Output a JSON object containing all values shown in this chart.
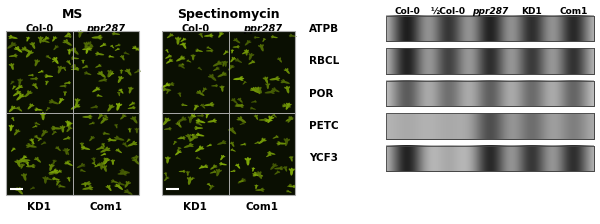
{
  "left_panel": {
    "ms_title": "MS",
    "spec_title": "Spectinomycin",
    "col0_label": "Col-0",
    "ppr287_label": "ppr287",
    "kd1_label": "KD1",
    "com1_label": "Com1",
    "bg_color": "#0a0f02",
    "plant_color_bright": "#c8d400",
    "plant_color_dark": "#6a8800"
  },
  "right_panel": {
    "bands": [
      "ATPB",
      "RBCL",
      "POR",
      "PETC",
      "YCF3"
    ],
    "header_labels": [
      "Col-0",
      "½Col-0",
      "ppr287",
      "KD1",
      "Com1"
    ],
    "header_italic": [
      false,
      false,
      true,
      false,
      false
    ],
    "band_profiles": {
      "ATPB": [
        0.9,
        0.78,
        0.88,
        0.82,
        0.85
      ],
      "RBCL": [
        0.88,
        0.72,
        0.82,
        0.76,
        0.8
      ],
      "POR": [
        0.6,
        0.5,
        0.58,
        0.52,
        0.55
      ],
      "PETC": [
        0.08,
        0.08,
        0.6,
        0.42,
        0.32
      ],
      "YCF3": [
        0.88,
        0.22,
        0.85,
        0.78,
        0.82
      ]
    },
    "bg_light": 0.88,
    "bg_dark": 0.75
  },
  "figure_bg": "#ffffff"
}
